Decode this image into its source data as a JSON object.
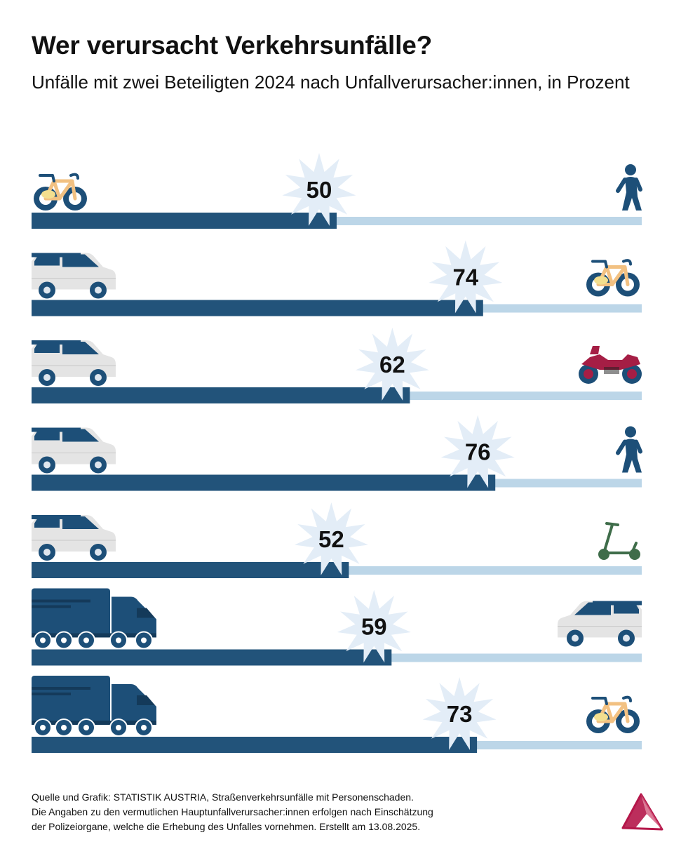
{
  "title": "Wer verursacht Verkehrsunfälle?",
  "subtitle": "Unfälle mit zwei Beteiligten 2024 nach Unfallverursacher:innen, in Prozent",
  "colors": {
    "bar_dark": "#22537a",
    "bar_light": "#bcd6e8",
    "star": "#e3edf7",
    "vehicle_dark": "#1d4f78",
    "car_body": "#e4e4e4",
    "bike_frame": "#f2c182",
    "bike_seat": "#f3df8f",
    "motorcycle": "#a51e45",
    "scooter": "#3f6d4a",
    "logo": "#b5174a"
  },
  "chart_data": {
    "type": "bar",
    "orientation": "horizontal",
    "stacked_to": 100,
    "xlim": [
      0,
      100
    ],
    "unit": "%",
    "rows": [
      {
        "causer_icon": "bicycle-icon",
        "other_icon": "pedestrian-icon",
        "value": 50
      },
      {
        "causer_icon": "car-icon",
        "other_icon": "bicycle-icon",
        "value": 74
      },
      {
        "causer_icon": "car-icon",
        "other_icon": "motorcycle-icon",
        "value": 62
      },
      {
        "causer_icon": "car-icon",
        "other_icon": "pedestrian-icon",
        "value": 76
      },
      {
        "causer_icon": "car-icon",
        "other_icon": "scooter-icon",
        "value": 52
      },
      {
        "causer_icon": "truck-icon",
        "other_icon": "car-icon",
        "value": 59
      },
      {
        "causer_icon": "truck-icon",
        "other_icon": "bicycle-icon",
        "value": 73
      }
    ]
  },
  "footer": {
    "line1": "Quelle und Grafik: STATISTIK AUSTRIA, Straßenverkehrsunfälle mit Personenschaden.",
    "line2": "Die Angaben zu den vermutlichen Hauptunfallverursacher:innen erfolgen nach Einschätzung",
    "line3": "der Polizeiorgane, welche die Erhebung des Unfalles vornehmen. Erstellt am 13.08.2025."
  },
  "logo_icon": "statistik-austria-logo-icon"
}
